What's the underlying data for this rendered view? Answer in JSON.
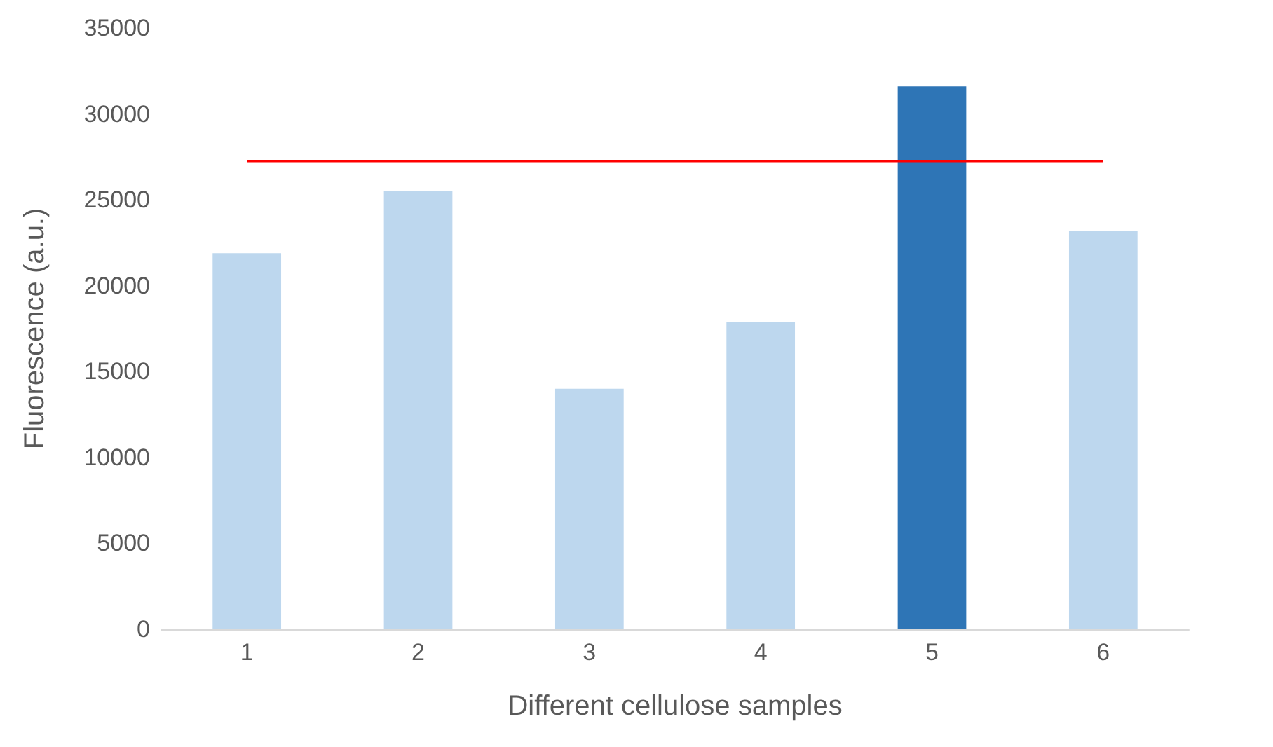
{
  "chart_data": {
    "type": "bar",
    "xlabel": "Different cellulose samples",
    "ylabel": "Fluorescence (a.u.)",
    "categories": [
      "1",
      "2",
      "3",
      "4",
      "5",
      "6"
    ],
    "values": [
      21900,
      25500,
      14000,
      17900,
      31600,
      23200
    ],
    "colors": [
      "#bdd7ee",
      "#bdd7ee",
      "#bdd7ee",
      "#bdd7ee",
      "#2e75b6",
      "#bdd7ee"
    ],
    "ylim": [
      0,
      35000
    ],
    "yticks": [
      0,
      5000,
      10000,
      15000,
      20000,
      25000,
      30000,
      35000
    ],
    "grid": false,
    "ref_lines": [
      {
        "axis": "y",
        "value": 27300,
        "label": null,
        "color": "#ff0000",
        "line_style": "solid"
      }
    ]
  }
}
